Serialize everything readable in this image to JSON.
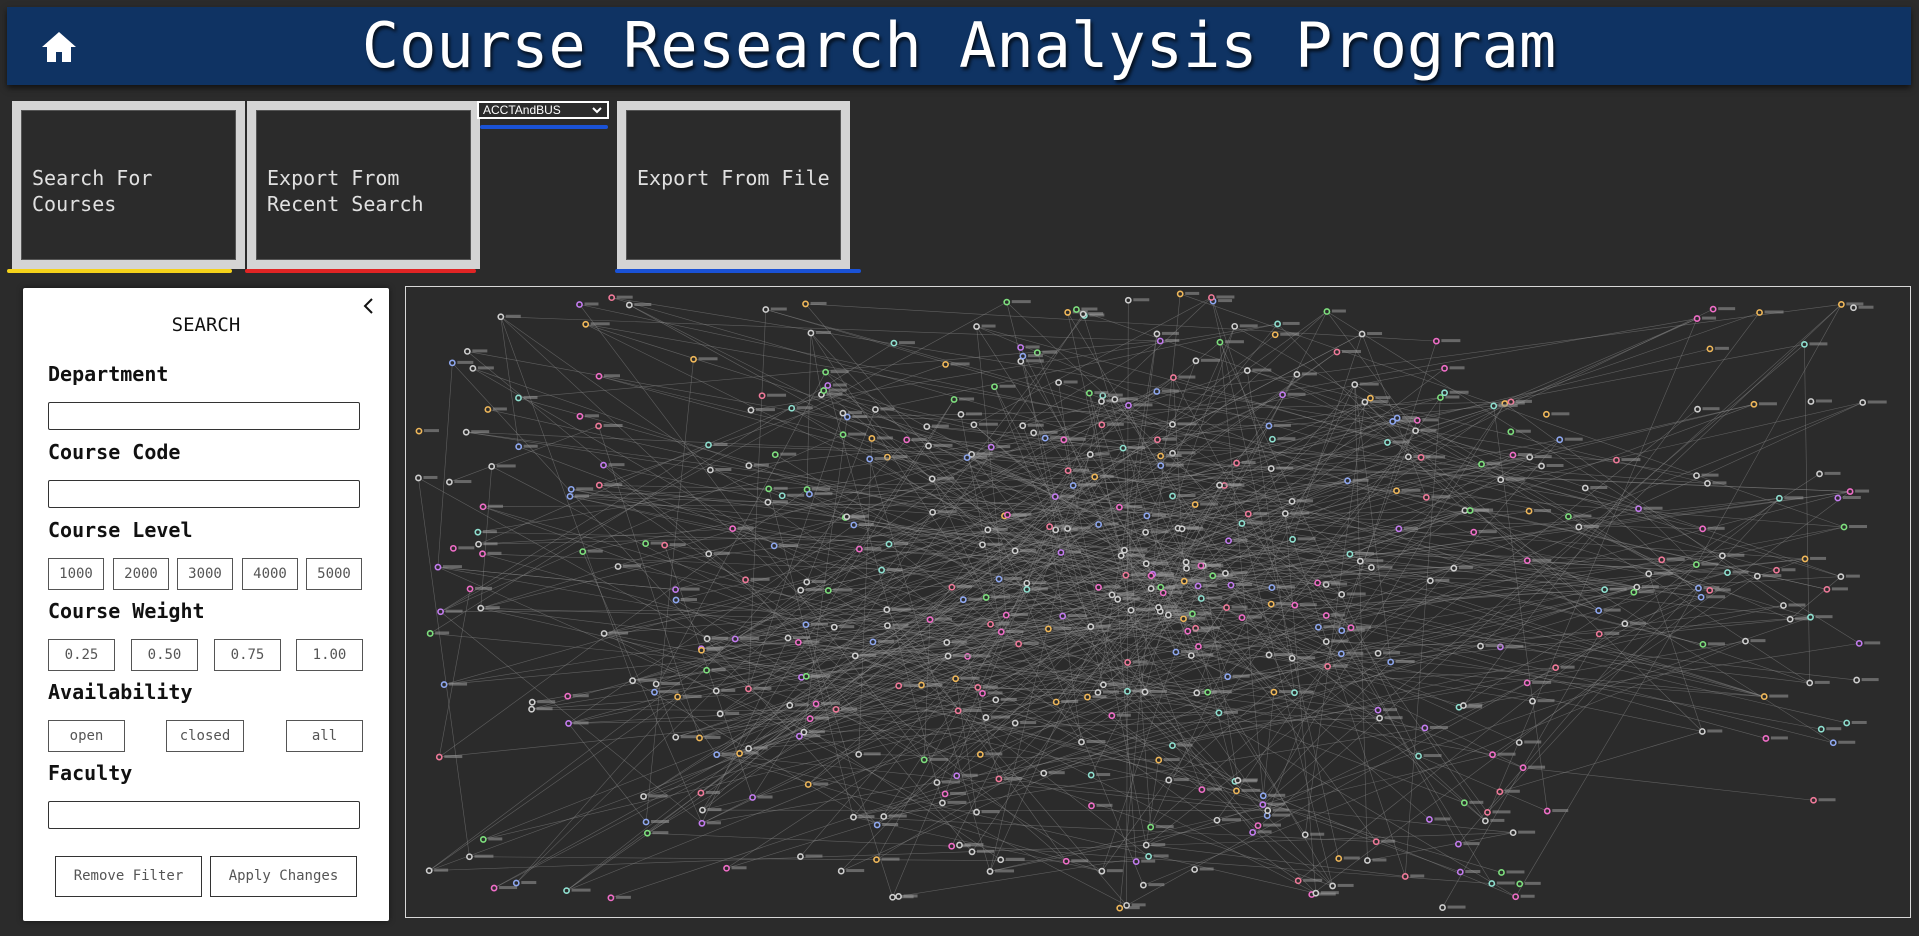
{
  "header": {
    "title": "Course Research Analysis Program",
    "home_icon": "home-icon"
  },
  "toolbar": {
    "search_label": "Search For Courses",
    "export_recent_label": "Export From Recent Search",
    "file_select_value": "ACCTAndBUS",
    "export_file_label": "Export From File",
    "colors": {
      "search_underline": "#f5d21a",
      "recent_underline": "#e02424",
      "file_underline": "#1a52d6"
    }
  },
  "search_panel": {
    "title": "SEARCH",
    "collapse_icon": "chevron-left-icon",
    "department_label": "Department",
    "department_value": "",
    "course_code_label": "Course Code",
    "course_code_value": "",
    "course_level_label": "Course Level",
    "course_levels": [
      "1000",
      "2000",
      "3000",
      "4000",
      "5000"
    ],
    "course_weight_label": "Course Weight",
    "course_weights": [
      "0.25",
      "0.50",
      "0.75",
      "1.00"
    ],
    "availability_label": "Availability",
    "availability_options": [
      "open",
      "closed",
      "all"
    ],
    "faculty_label": "Faculty",
    "faculty_value": "",
    "remove_filter_label": "Remove Filter",
    "apply_changes_label": "Apply Changes"
  },
  "graph": {
    "node_colors": [
      "#cfcfcf",
      "#cfcfcf",
      "#cfcfcf",
      "#cfcfcf",
      "#7ee07e",
      "#f0b85a",
      "#c47cf0",
      "#8fa8f0",
      "#f06ec8",
      "#8fe0d0",
      "#f07a9a"
    ],
    "edge_color": "#8a8a8a",
    "label_color": "#9a9a9a"
  }
}
